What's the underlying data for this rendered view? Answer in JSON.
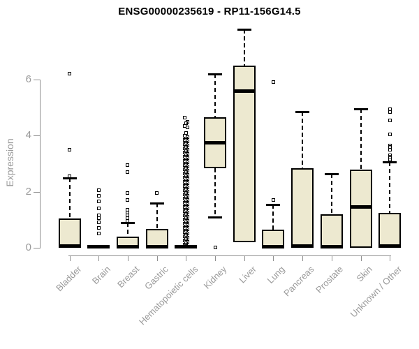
{
  "chart_data": {
    "type": "boxplot",
    "title": "ENSG00000235619 - RP11-156G14.5",
    "ylabel": "Expression",
    "xlabel": "",
    "yticks": [
      0,
      2,
      4,
      6
    ],
    "ylim": [
      0,
      7.9
    ],
    "grid": false,
    "legend": "none",
    "colors": {
      "box_fill": "#EDE9D0",
      "box_border": "#000000",
      "median": "#000000",
      "axis": "#8f8f8f",
      "axis_text": "#9a9a9a",
      "title_text": "#000000"
    },
    "categories": [
      "Bladder",
      "Brain",
      "Breast",
      "Gastric",
      "Hematopoietic cells",
      "Kidney",
      "Liver",
      "Lung",
      "Pancreas",
      "Prostate",
      "Skin",
      "Unknown / Other"
    ],
    "boxes": [
      {
        "category": "Bladder",
        "q1": 0,
        "median": 0.07,
        "q3": 1.05,
        "whisker_low": null,
        "whisker_high": 2.5,
        "outliers": [
          2.55,
          3.5,
          6.2
        ]
      },
      {
        "category": "Brain",
        "q1": 0,
        "median": 0.04,
        "q3": 0.08,
        "whisker_low": null,
        "whisker_high": null,
        "outliers": [
          0.5,
          0.7,
          0.9,
          1.05,
          1.15,
          1.4,
          1.65,
          1.85,
          2.05
        ]
      },
      {
        "category": "Breast",
        "q1": 0,
        "median": 0.04,
        "q3": 0.4,
        "whisker_low": null,
        "whisker_high": 0.9,
        "outliers": [
          0.95,
          1.05,
          1.15,
          1.25,
          1.35,
          1.7,
          1.95,
          2.7,
          2.95
        ]
      },
      {
        "category": "Gastric",
        "q1": 0,
        "median": 0.04,
        "q3": 0.67,
        "whisker_low": null,
        "whisker_high": 1.6,
        "outliers": [
          1.95
        ]
      },
      {
        "category": "Hematopoietic cells",
        "q1": 0,
        "median": 0.04,
        "q3": 0.08,
        "whisker_low": null,
        "whisker_high": null,
        "outliers": [
          0.1,
          0.15,
          0.2,
          0.25,
          0.3,
          0.35,
          0.4,
          0.45,
          0.5,
          0.55,
          0.6,
          0.65,
          0.7,
          0.75,
          0.8,
          0.85,
          0.9,
          0.95,
          1.0,
          1.05,
          1.1,
          1.15,
          1.2,
          1.25,
          1.3,
          1.35,
          1.4,
          1.45,
          1.5,
          1.55,
          1.6,
          1.65,
          1.7,
          1.75,
          1.8,
          1.85,
          1.9,
          1.95,
          2.0,
          2.05,
          2.1,
          2.15,
          2.2,
          2.25,
          2.3,
          2.35,
          2.4,
          2.45,
          2.5,
          2.55,
          2.6,
          2.65,
          2.7,
          2.75,
          2.8,
          2.85,
          2.9,
          2.95,
          3.0,
          3.05,
          3.1,
          3.15,
          3.2,
          3.25,
          3.3,
          3.35,
          3.4,
          3.45,
          3.5,
          3.55,
          3.6,
          3.65,
          3.7,
          3.75,
          3.8,
          3.85,
          3.9,
          3.95,
          4.0,
          4.1,
          4.3,
          4.35,
          4.45,
          4.5,
          4.65
        ]
      },
      {
        "category": "Kidney",
        "q1": 2.85,
        "median": 3.75,
        "q3": 4.65,
        "whisker_low": 1.1,
        "whisker_high": 6.2,
        "outliers": [
          0.02
        ]
      },
      {
        "category": "Liver",
        "q1": 0.2,
        "median": 5.6,
        "q3": 6.5,
        "whisker_low": null,
        "whisker_high": 7.8,
        "outliers": []
      },
      {
        "category": "Lung",
        "q1": 0,
        "median": 0.04,
        "q3": 0.65,
        "whisker_low": null,
        "whisker_high": 1.55,
        "outliers": [
          1.7,
          5.9
        ]
      },
      {
        "category": "Pancreas",
        "q1": 0,
        "median": 0.05,
        "q3": 2.85,
        "whisker_low": null,
        "whisker_high": 4.85,
        "outliers": []
      },
      {
        "category": "Prostate",
        "q1": 0,
        "median": 0.04,
        "q3": 1.2,
        "whisker_low": null,
        "whisker_high": 2.65,
        "outliers": []
      },
      {
        "category": "Skin",
        "q1": 0,
        "median": 1.45,
        "q3": 2.8,
        "whisker_low": null,
        "whisker_high": 4.95,
        "outliers": []
      },
      {
        "category": "Unknown / Other",
        "q1": 0,
        "median": 0.05,
        "q3": 1.25,
        "whisker_low": null,
        "whisker_high": 3.05,
        "outliers": [
          3.15,
          3.25,
          3.3,
          3.5,
          3.6,
          3.65,
          4.05,
          4.55,
          4.85,
          4.95
        ]
      }
    ]
  }
}
